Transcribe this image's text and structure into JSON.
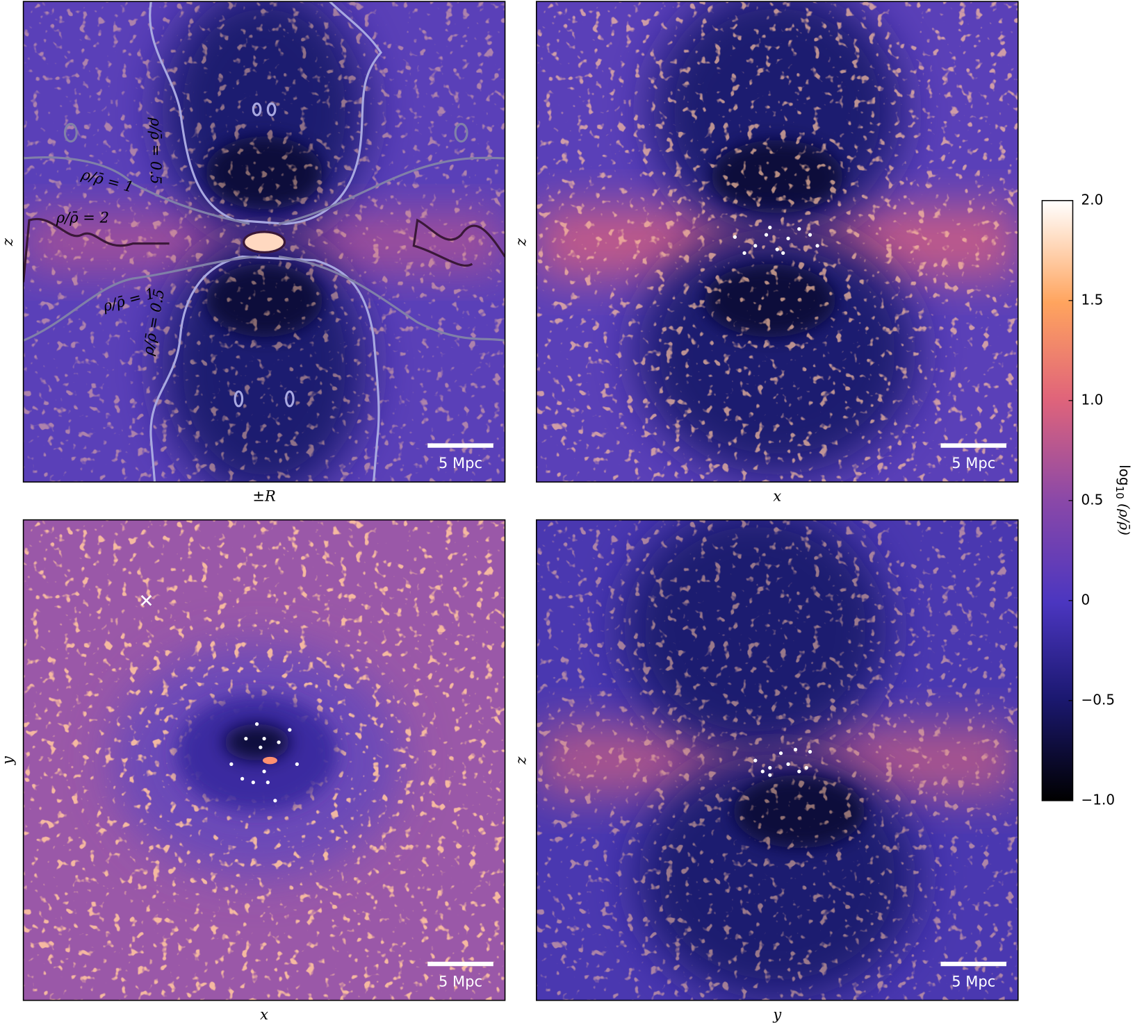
{
  "chart_data": {
    "type": "image",
    "panels": [
      {
        "xlabel": "±R",
        "ylabel": "z",
        "scalebar": "5 Mpc",
        "annotations": [
          "ρ/ρ̄ = 0.5",
          "ρ/ρ̄ = 1",
          "ρ/ρ̄ = 2",
          "ρ/ρ̄ = 1",
          "ρ/ρ̄ = 0.5"
        ]
      },
      {
        "xlabel": "x",
        "ylabel": "z",
        "scalebar": "5 Mpc"
      },
      {
        "xlabel": "x",
        "ylabel": "y",
        "scalebar": "5 Mpc"
      },
      {
        "xlabel": "y",
        "ylabel": "z",
        "scalebar": "5 Mpc"
      }
    ],
    "colorbar": {
      "label": [
        "log",
        "10",
        " (ρ/ρ̄)"
      ],
      "ylim": [
        -1,
        2
      ],
      "yticks": [
        {
          "value": 2,
          "label": "2.0"
        },
        1.5,
        {
          "value": 1,
          "label": "1.0"
        },
        0.5,
        0,
        {
          "value": -0.5,
          "label": "−0.5"
        },
        {
          "value": -1,
          "label": "−1.0"
        }
      ]
    }
  }
}
